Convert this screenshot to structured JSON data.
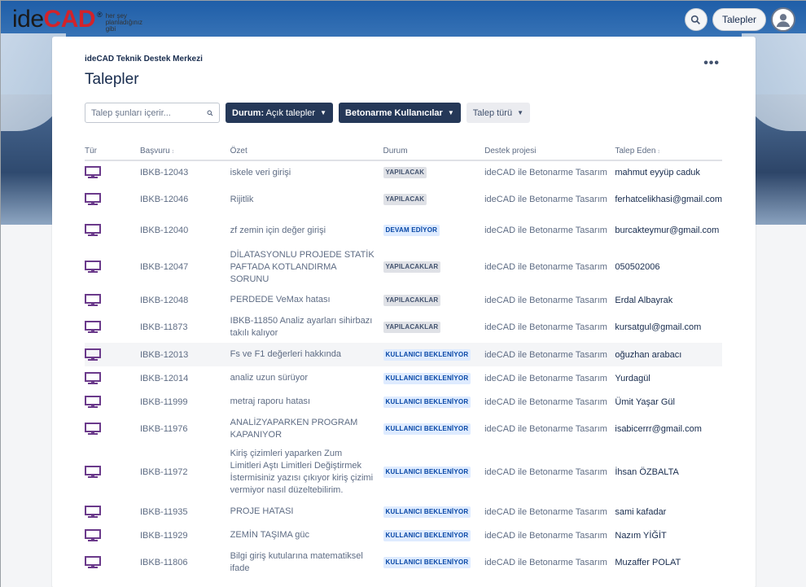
{
  "brand": {
    "logo_ide": "ide",
    "logo_cad": "CAD",
    "logo_reg": "®",
    "tagline": "her şey planladığınız gibi"
  },
  "topbar": {
    "requests_label": "Talepler",
    "search_icon": "search-icon",
    "avatar_icon": "user-avatar-icon"
  },
  "page": {
    "breadcrumb": "ideCAD Teknik Destek Merkezi",
    "title": "Talepler",
    "more": "•••"
  },
  "filters": {
    "search_placeholder": "Talep şunları içerir...",
    "status_prefix": "Durum:",
    "status_value": "Açık talepler",
    "project": "Betonarme Kullanıcılar",
    "type": "Talep türü"
  },
  "columns": {
    "type": "Tür",
    "key": "Başvuru",
    "summary": "Özet",
    "status": "Durum",
    "project": "Destek projesi",
    "reporter": "Talep Eden"
  },
  "colors": {
    "navy": "#253858",
    "todo": "#dfe1e6",
    "inprogress": "#deebff",
    "icon": "#6b3a8b"
  },
  "rows": [
    {
      "key": "IBKB-12043",
      "summary": "iskele veri girişi",
      "status": "YAPILACAK",
      "kind": "todo",
      "project": "ideCAD ile Betonarme Tasarım",
      "reporter": "mahmut eyyüp caduk"
    },
    {
      "key": "IBKB-12046",
      "summary": "Rijitlik",
      "status": "YAPILACAK",
      "kind": "todo",
      "project": "ideCAD ile Betonarme Tasarım",
      "reporter": "ferhatcelikhasi@gmail.com"
    },
    {
      "key": "IBKB-12040",
      "summary": "zf zemin için değer girişi",
      "status": "DEVAM EDİYOR",
      "kind": "prog",
      "project": "ideCAD ile Betonarme Tasarım",
      "reporter": "burcakteymur@gmail.com"
    },
    {
      "key": "IBKB-12047",
      "summary": "DİLATASYONLU PROJEDE STATİK PAFTADA KOTLANDIRMA SORUNU",
      "status": "YAPILACAKLAR",
      "kind": "todo",
      "project": "ideCAD ile Betonarme Tasarım",
      "reporter": "050502006"
    },
    {
      "key": "IBKB-12048",
      "summary": "PERDEDE VeMax hatası",
      "status": "YAPILACAKLAR",
      "kind": "todo",
      "project": "ideCAD ile Betonarme Tasarım",
      "reporter": "Erdal Albayrak"
    },
    {
      "key": "IBKB-11873",
      "summary": "IBKB-11850 Analiz ayarları sihirbazı takılı kalıyor",
      "status": "YAPILACAKLAR",
      "kind": "todo",
      "project": "ideCAD ile Betonarme Tasarım",
      "reporter": "kursatgul@gmail.com"
    },
    {
      "key": "IBKB-12013",
      "summary": "Fs ve F1 değerleri hakkında",
      "status": "KULLANICI BEKLENİYOR",
      "kind": "prog",
      "project": "ideCAD ile Betonarme Tasarım",
      "reporter": "oğuzhan arabacı"
    },
    {
      "key": "IBKB-12014",
      "summary": "analiz uzun sürüyor",
      "status": "KULLANICI BEKLENİYOR",
      "kind": "prog",
      "project": "ideCAD ile Betonarme Tasarım",
      "reporter": "Yurdagül"
    },
    {
      "key": "IBKB-11999",
      "summary": "metraj raporu hatası",
      "status": "KULLANICI BEKLENİYOR",
      "kind": "prog",
      "project": "ideCAD ile Betonarme Tasarım",
      "reporter": "Ümit Yaşar Gül"
    },
    {
      "key": "IBKB-11976",
      "summary": "ANALİZYAPARKEN PROGRAM KAPANIYOR",
      "status": "KULLANICI BEKLENİYOR",
      "kind": "prog",
      "project": "ideCAD ile Betonarme Tasarım",
      "reporter": "isabicerrr@gmail.com"
    },
    {
      "key": "IBKB-11972",
      "summary": "Kiriş çizimleri yaparken Zum Limitleri Aştı Limitleri Değiştirmek İstermisiniz yazısı çıkıyor kiriş çizimi vermiyor nasıl düzeltebilirim.",
      "status": "KULLANICI BEKLENİYOR",
      "kind": "prog",
      "project": "ideCAD ile Betonarme Tasarım",
      "reporter": "İhsan ÖZBALTA"
    },
    {
      "key": "IBKB-11935",
      "summary": "PROJE HATASI",
      "status": "KULLANICI BEKLENİYOR",
      "kind": "prog",
      "project": "ideCAD ile Betonarme Tasarım",
      "reporter": "sami kafadar"
    },
    {
      "key": "IBKB-11929",
      "summary": "ZEMİN TAŞIMA güc",
      "status": "KULLANICI BEKLENİYOR",
      "kind": "prog",
      "project": "ideCAD ile Betonarme Tasarım",
      "reporter": "Nazım YİĞİT"
    },
    {
      "key": "IBKB-11806",
      "summary": "Bilgi giriş kutularına matematiksel ifade",
      "status": "KULLANICI BEKLENİYOR",
      "kind": "prog",
      "project": "ideCAD ile Betonarme Tasarım",
      "reporter": "Muzaffer POLAT"
    }
  ]
}
